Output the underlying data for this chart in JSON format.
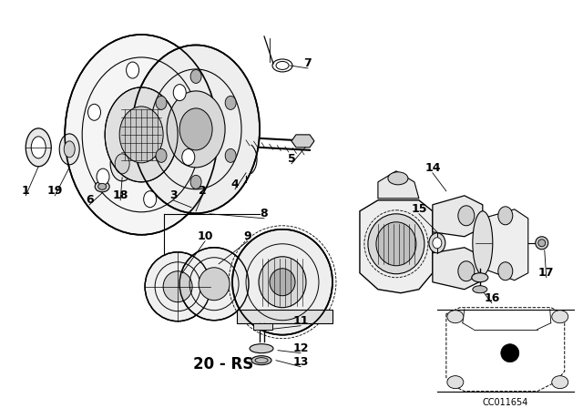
{
  "background_color": "#ffffff",
  "line_color": "#000000",
  "diagram_code": "20 - RS",
  "part_code": "CC011654",
  "figsize": [
    6.4,
    4.48
  ],
  "dpi": 100
}
